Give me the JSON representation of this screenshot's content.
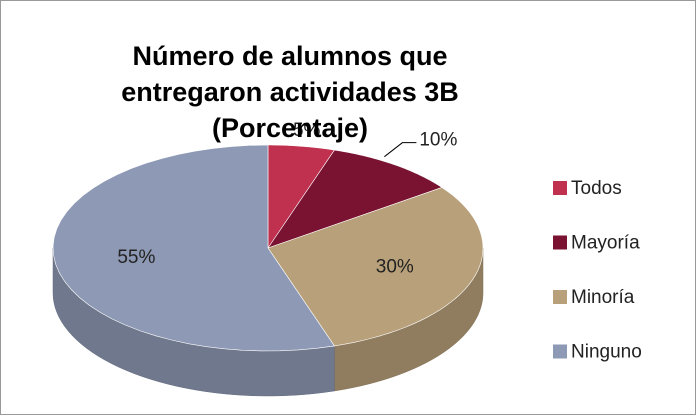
{
  "chart_data": {
    "type": "pie",
    "title": "Número de alumnos que entregaron actividades 3B (Porcentaje)",
    "categories": [
      "Todos",
      "Mayoría",
      "Minoría",
      "Ninguno"
    ],
    "values": [
      5,
      10,
      30,
      55
    ],
    "value_labels": [
      "5%",
      "10%",
      "30%",
      "55%"
    ],
    "colors": [
      "#c0304f",
      "#7a1232",
      "#b8a07a",
      "#8e9ab5"
    ],
    "legend": "right"
  }
}
